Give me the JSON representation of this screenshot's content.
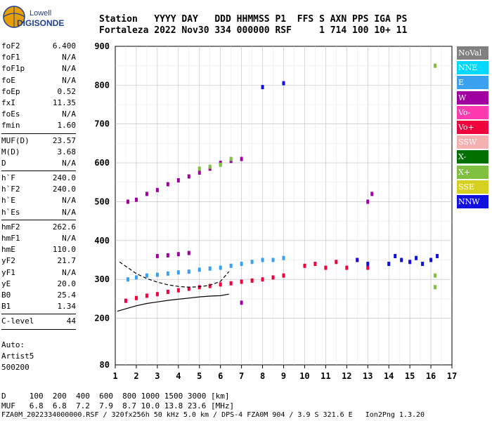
{
  "logo": {
    "line1": "Lowell",
    "line2": "DIGISONDE"
  },
  "header": {
    "line1": "Station   YYYY DAY   DDD HHMMSS P1  FFS S AXN PPS IGA PS",
    "line2": "Fortaleza 2022 Nov30 334 000000 RSF     1 714 100 10+ 11"
  },
  "params": [
    [
      {
        "k": "foF2",
        "v": "6.400"
      },
      {
        "k": "foF1",
        "v": "N/A"
      },
      {
        "k": "foF1p",
        "v": "N/A"
      },
      {
        "k": "foE",
        "v": "N/A"
      },
      {
        "k": "foEp",
        "v": "0.52"
      },
      {
        "k": "fxI",
        "v": "11.35"
      },
      {
        "k": "foEs",
        "v": "N/A"
      },
      {
        "k": "fmin",
        "v": "1.60"
      }
    ],
    [
      {
        "k": "MUF(D)",
        "v": "23.57"
      },
      {
        "k": "M(D)",
        "v": "3.68"
      },
      {
        "k": "D",
        "v": "N/A"
      }
    ],
    [
      {
        "k": "h`F",
        "v": "240.0"
      },
      {
        "k": "h`F2",
        "v": "240.0"
      },
      {
        "k": "h`E",
        "v": "N/A"
      },
      {
        "k": "h`Es",
        "v": "N/A"
      }
    ],
    [
      {
        "k": "hmF2",
        "v": "262.6"
      },
      {
        "k": "hmF1",
        "v": "N/A"
      },
      {
        "k": "hmE",
        "v": "110.0"
      },
      {
        "k": "yF2",
        "v": "21.7"
      },
      {
        "k": "yF1",
        "v": "N/A"
      },
      {
        "k": "yE",
        "v": "20.0"
      },
      {
        "k": "B0",
        "v": "25.4"
      },
      {
        "k": "B1",
        "v": "1.34"
      }
    ],
    [
      {
        "k": "C-level",
        "v": "44"
      }
    ]
  ],
  "auto": [
    "Auto:",
    "Artist5",
    "500200"
  ],
  "legend": [
    {
      "label": "NoVal",
      "color": "#808080"
    },
    {
      "label": "NNE",
      "color": "#00d8ff"
    },
    {
      "label": "E",
      "color": "#3aa0f0"
    },
    {
      "label": "W",
      "color": "#a000a0"
    },
    {
      "label": "Vo-",
      "color": "#ff3ab0"
    },
    {
      "label": "Vo+",
      "color": "#f0003c"
    },
    {
      "label": "SSW",
      "color": "#f5b0b0"
    },
    {
      "label": "X-",
      "color": "#007000"
    },
    {
      "label": "X+",
      "color": "#80c040"
    },
    {
      "label": "SSE",
      "color": "#d8d020"
    },
    {
      "label": "NNW",
      "color": "#1010e0"
    }
  ],
  "footer": {
    "line1": "D     100  200  400  600  800 1000 1500 3000 [km]",
    "line2": "MUF   6.8  6.8  7.2  7.9  8.7 10.0 13.8 23.6 [MHz]",
    "line3": "FZA0M_2022334000000.RSF / 320fx256h 50 kHz 5.0 km / DPS-4 FZA0M 904 / 3.9 S 321.6 E   Ion2Png 1.3.20"
  },
  "chart_data": {
    "type": "scatter",
    "xlim": [
      1,
      17
    ],
    "ylim": [
      80,
      900
    ],
    "x_ticks": [
      1,
      2,
      3,
      4,
      5,
      6,
      7,
      8,
      9,
      10,
      11,
      12,
      13,
      14,
      15,
      16,
      17
    ],
    "y_ticks": [
      80,
      200,
      300,
      400,
      500,
      600,
      700,
      800,
      900
    ],
    "series": [
      {
        "name": "Vo+ F-trace",
        "color": "#f0003c",
        "points": [
          [
            1.5,
            245
          ],
          [
            2,
            252
          ],
          [
            2.5,
            258
          ],
          [
            3,
            262
          ],
          [
            3.5,
            268
          ],
          [
            4,
            272
          ],
          [
            4.5,
            276
          ],
          [
            5,
            280
          ],
          [
            5.5,
            283
          ],
          [
            6,
            287
          ],
          [
            6.5,
            290
          ],
          [
            7,
            294
          ],
          [
            7.5,
            297
          ],
          [
            8,
            300
          ],
          [
            8.5,
            305
          ],
          [
            9,
            310
          ],
          [
            10,
            335
          ],
          [
            10.5,
            340
          ],
          [
            11,
            330
          ],
          [
            11.5,
            345
          ],
          [
            12,
            330
          ],
          [
            12.5,
            350
          ],
          [
            13,
            330
          ]
        ]
      },
      {
        "name": "W trace",
        "color": "#a000a0",
        "points": [
          [
            1.6,
            500
          ],
          [
            2,
            505
          ],
          [
            2.5,
            520
          ],
          [
            3,
            530
          ],
          [
            3.5,
            545
          ],
          [
            4,
            555
          ],
          [
            4.5,
            565
          ],
          [
            5,
            575
          ],
          [
            5.5,
            585
          ],
          [
            6,
            600
          ],
          [
            6.5,
            605
          ],
          [
            7,
            610
          ],
          [
            3,
            360
          ],
          [
            3.5,
            362
          ],
          [
            4,
            365
          ],
          [
            4.5,
            368
          ],
          [
            7,
            240
          ],
          [
            13,
            500
          ],
          [
            13.2,
            520
          ]
        ]
      },
      {
        "name": "E scatter",
        "color": "#3aa0f0",
        "points": [
          [
            1.6,
            300
          ],
          [
            2,
            305
          ],
          [
            2.5,
            310
          ],
          [
            3,
            312
          ],
          [
            3.5,
            315
          ],
          [
            4,
            318
          ],
          [
            4.5,
            320
          ],
          [
            5,
            325
          ],
          [
            5.5,
            328
          ],
          [
            6,
            330
          ],
          [
            6.5,
            335
          ],
          [
            7,
            340
          ],
          [
            7.5,
            345
          ],
          [
            8,
            350
          ],
          [
            8.5,
            350
          ],
          [
            9,
            355
          ]
        ]
      },
      {
        "name": "NNW cluster",
        "color": "#1010e0",
        "points": [
          [
            14,
            340
          ],
          [
            14.3,
            360
          ],
          [
            14.6,
            350
          ],
          [
            15,
            345
          ],
          [
            15.3,
            355
          ],
          [
            15.6,
            340
          ],
          [
            16,
            350
          ],
          [
            16.3,
            360
          ],
          [
            12.5,
            350
          ],
          [
            13,
            340
          ],
          [
            8,
            795
          ],
          [
            9,
            805
          ]
        ]
      },
      {
        "name": "X+ / X- upper",
        "color": "#80c040",
        "points": [
          [
            5,
            585
          ],
          [
            5.5,
            590
          ],
          [
            6,
            595
          ],
          [
            6.5,
            610
          ],
          [
            16.2,
            310
          ],
          [
            16.2,
            280
          ],
          [
            16.2,
            850
          ]
        ]
      }
    ],
    "curves": [
      {
        "name": "model-profile",
        "color": "#000000",
        "points": [
          [
            1.1,
            218
          ],
          [
            1.6,
            226
          ],
          [
            2,
            232
          ],
          [
            2.5,
            238
          ],
          [
            3,
            242
          ],
          [
            3.5,
            246
          ],
          [
            4,
            249
          ],
          [
            4.5,
            252
          ],
          [
            5,
            255
          ],
          [
            5.5,
            257
          ],
          [
            6,
            258
          ],
          [
            6.4,
            262
          ]
        ]
      },
      {
        "name": "model-dashed",
        "color": "#000000",
        "dashed": true,
        "points": [
          [
            1.2,
            345
          ],
          [
            1.6,
            330
          ],
          [
            2,
            315
          ],
          [
            2.5,
            302
          ],
          [
            3,
            293
          ],
          [
            3.5,
            286
          ],
          [
            4,
            282
          ],
          [
            4.5,
            280
          ],
          [
            5,
            281
          ],
          [
            5.5,
            285
          ],
          [
            6,
            295
          ],
          [
            6.4,
            320
          ]
        ]
      }
    ]
  }
}
